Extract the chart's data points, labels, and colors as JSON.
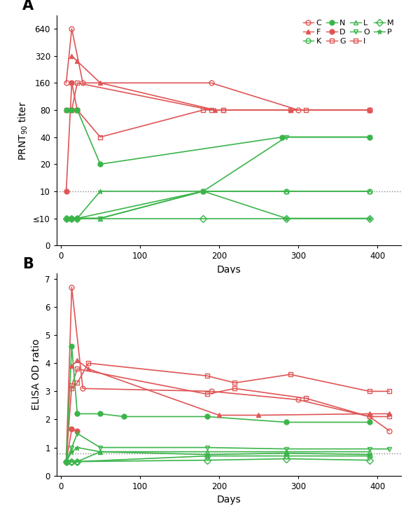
{
  "red_color": "#e05555",
  "green_color": "#3ab54a",
  "dotted_line_color": "#888888",
  "patients_A": {
    "C": {
      "days": [
        7,
        14,
        28,
        190,
        300,
        390
      ],
      "titers": [
        160,
        640,
        160,
        160,
        80,
        80
      ],
      "color": "#e05555",
      "marker": "o",
      "filled": false
    },
    "D": {
      "days": [
        7,
        14,
        21
      ],
      "titers": [
        10,
        160,
        80
      ],
      "color": "#e05555",
      "marker": "o",
      "filled": true
    },
    "F": {
      "days": [
        14,
        21,
        50,
        195,
        290,
        390
      ],
      "titers": [
        320,
        280,
        160,
        80,
        80,
        80
      ],
      "color": "#e05555",
      "marker": "^",
      "filled": true
    },
    "G": {
      "days": [
        14,
        21,
        50,
        180,
        205,
        290,
        390
      ],
      "titers": [
        80,
        80,
        40,
        80,
        80,
        80,
        80
      ],
      "color": "#e05555",
      "marker": "s",
      "filled": false
    },
    "I": {
      "days": [
        7,
        14,
        21,
        190,
        205,
        310,
        390
      ],
      "titers": [
        80,
        80,
        160,
        80,
        80,
        80,
        80
      ],
      "color": "#e05555",
      "marker": "s",
      "filled": false
    },
    "K": {
      "days": [
        7,
        14,
        21,
        180,
        285,
        390
      ],
      "titers": [
        5,
        5,
        5,
        10,
        10,
        10
      ],
      "color": "#3ab54a",
      "marker": "o",
      "filled": false
    },
    "L": {
      "days": [
        7,
        14,
        21,
        50,
        180,
        285,
        390
      ],
      "titers": [
        5,
        5,
        5,
        5,
        10,
        10,
        10
      ],
      "color": "#3ab54a",
      "marker": "^",
      "filled": false
    },
    "M": {
      "days": [
        7,
        14,
        21,
        180,
        285,
        390
      ],
      "titers": [
        5,
        5,
        5,
        5,
        5,
        5
      ],
      "color": "#3ab54a",
      "marker": "D",
      "filled": false
    },
    "N": {
      "days": [
        7,
        14,
        21,
        50,
        280,
        390
      ],
      "titers": [
        80,
        80,
        80,
        20,
        40,
        40
      ],
      "color": "#3ab54a",
      "marker": "o",
      "filled": true
    },
    "O": {
      "days": [
        7,
        14,
        21,
        50,
        180,
        285,
        390
      ],
      "titers": [
        5,
        5,
        5,
        5,
        10,
        40,
        40
      ],
      "color": "#3ab54a",
      "marker": "v",
      "filled": false
    },
    "P": {
      "days": [
        7,
        14,
        21,
        50,
        180,
        285,
        390
      ],
      "titers": [
        5,
        5,
        5,
        10,
        10,
        5,
        5
      ],
      "color": "#3ab54a",
      "marker": "*",
      "filled": true
    }
  },
  "patients_B": {
    "C": {
      "days": [
        7,
        14,
        28,
        190,
        300,
        390,
        415
      ],
      "values": [
        0.5,
        6.7,
        3.1,
        3.0,
        2.7,
        2.1,
        1.6
      ],
      "color": "#e05555",
      "marker": "o",
      "filled": false
    },
    "D": {
      "days": [
        7,
        14,
        21
      ],
      "values": [
        0.5,
        1.65,
        1.6
      ],
      "color": "#e05555",
      "marker": "o",
      "filled": true
    },
    "F": {
      "days": [
        14,
        21,
        35,
        200,
        250,
        390,
        415
      ],
      "values": [
        3.9,
        4.1,
        3.8,
        2.15,
        2.15,
        2.2,
        2.2
      ],
      "color": "#e05555",
      "marker": "^",
      "filled": true
    },
    "G": {
      "days": [
        14,
        21,
        35,
        185,
        220,
        290,
        390,
        415
      ],
      "values": [
        3.1,
        3.3,
        4.0,
        3.55,
        3.3,
        3.6,
        3.0,
        3.0
      ],
      "color": "#e05555",
      "marker": "s",
      "filled": false
    },
    "I": {
      "days": [
        7,
        14,
        21,
        185,
        220,
        310,
        390,
        415
      ],
      "values": [
        0.5,
        3.2,
        3.8,
        2.9,
        3.1,
        2.75,
        2.1,
        2.1
      ],
      "color": "#e05555",
      "marker": "s",
      "filled": false
    },
    "K": {
      "days": [
        7,
        14,
        21,
        185,
        285,
        390
      ],
      "values": [
        0.5,
        0.5,
        0.5,
        0.7,
        0.7,
        0.7
      ],
      "color": "#3ab54a",
      "marker": "o",
      "filled": false
    },
    "L": {
      "days": [
        7,
        14,
        21,
        50,
        185,
        285,
        390
      ],
      "values": [
        0.5,
        0.5,
        0.5,
        0.85,
        0.85,
        0.85,
        0.85
      ],
      "color": "#3ab54a",
      "marker": "^",
      "filled": false
    },
    "M": {
      "days": [
        7,
        14,
        21,
        185,
        285,
        390
      ],
      "values": [
        0.5,
        0.5,
        0.5,
        0.55,
        0.6,
        0.55
      ],
      "color": "#3ab54a",
      "marker": "D",
      "filled": false
    },
    "N": {
      "days": [
        7,
        14,
        21,
        50,
        80,
        185,
        285,
        390
      ],
      "values": [
        0.5,
        4.6,
        2.2,
        2.2,
        2.1,
        2.1,
        1.9,
        1.9
      ],
      "color": "#3ab54a",
      "marker": "o",
      "filled": true
    },
    "O": {
      "days": [
        7,
        14,
        21,
        50,
        185,
        285,
        390,
        415
      ],
      "values": [
        0.5,
        1.0,
        1.5,
        1.0,
        1.0,
        0.95,
        0.95,
        0.95
      ],
      "color": "#3ab54a",
      "marker": "v",
      "filled": false
    },
    "P": {
      "days": [
        7,
        14,
        21,
        50,
        185,
        285,
        390
      ],
      "values": [
        0.5,
        0.85,
        1.0,
        0.85,
        0.75,
        0.8,
        0.75
      ],
      "color": "#3ab54a",
      "marker": "*",
      "filled": true
    }
  },
  "prnt_lod": 10,
  "elisa_cutoff": 0.8,
  "legend_names": [
    "C",
    "F",
    "K",
    "N",
    "D",
    "G",
    "L",
    "O",
    "I",
    "M",
    "P"
  ],
  "marker_map": {
    "C": [
      "o",
      false,
      "#e05555"
    ],
    "D": [
      "o",
      true,
      "#e05555"
    ],
    "F": [
      "^",
      true,
      "#e05555"
    ],
    "G": [
      "s",
      false,
      "#e05555"
    ],
    "I": [
      "s",
      false,
      "#e05555"
    ],
    "K": [
      "o",
      false,
      "#3ab54a"
    ],
    "L": [
      "^",
      false,
      "#3ab54a"
    ],
    "M": [
      "D",
      false,
      "#3ab54a"
    ],
    "N": [
      "o",
      true,
      "#3ab54a"
    ],
    "O": [
      "v",
      false,
      "#3ab54a"
    ],
    "P": [
      "*",
      true,
      "#3ab54a"
    ]
  }
}
